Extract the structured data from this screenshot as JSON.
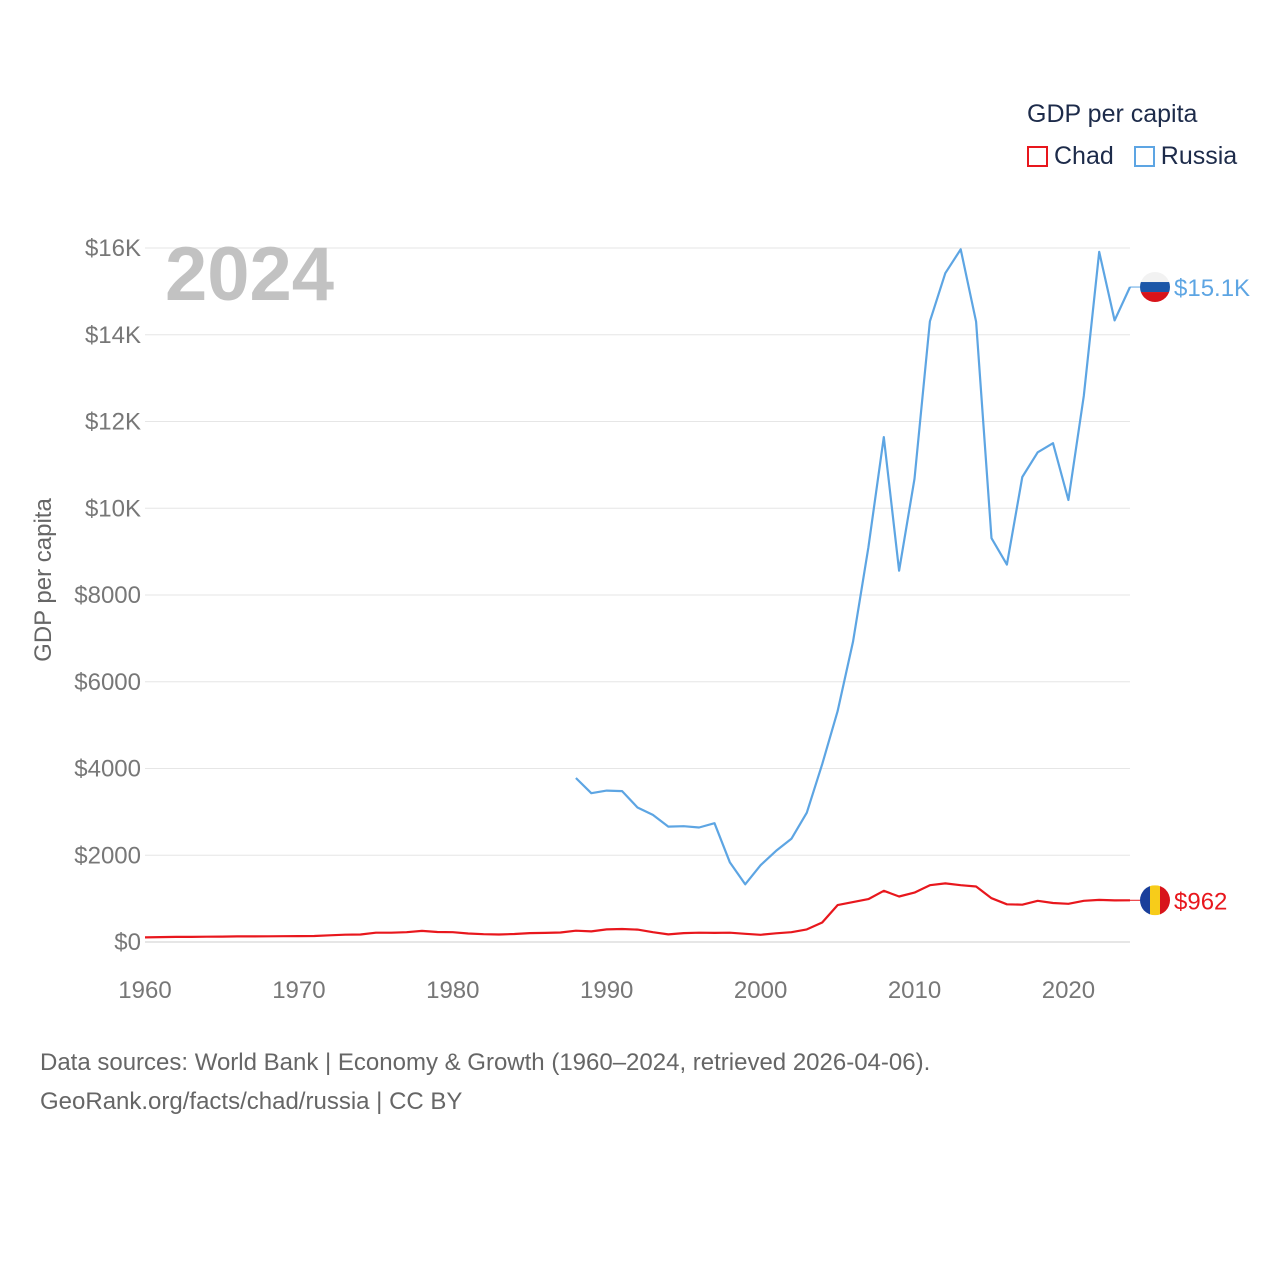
{
  "legend": {
    "title": "GDP per capita"
  },
  "footer": {
    "line1": "Data sources: World Bank | Economy & Growth (1960–2024, retrieved 2026-04-06).",
    "line2": "GeoRank.org/facts/chad/russia | CC BY"
  },
  "chart_data": {
    "type": "line",
    "title": "GDP per capita",
    "year_label": "2024",
    "xlabel": "",
    "ylabel": "GDP per capita",
    "xlim": [
      1960,
      2024
    ],
    "ylim": [
      0,
      16000
    ],
    "x_ticks": [
      1960,
      1970,
      1980,
      1990,
      2000,
      2010,
      2020
    ],
    "y_ticks": [
      {
        "value": 0,
        "label": "$0"
      },
      {
        "value": 2000,
        "label": "$2000"
      },
      {
        "value": 4000,
        "label": "$4000"
      },
      {
        "value": 6000,
        "label": "$6000"
      },
      {
        "value": 8000,
        "label": "$8000"
      },
      {
        "value": 10000,
        "label": "$10K"
      },
      {
        "value": 12000,
        "label": "$12K"
      },
      {
        "value": 14000,
        "label": "$14K"
      },
      {
        "value": 16000,
        "label": "$16K"
      }
    ],
    "grid": true,
    "legend_position": "top-right",
    "series": [
      {
        "name": "Chad",
        "color": "#e8171d",
        "end_label": "$962",
        "flag": "chad-flag",
        "x": [
          1960,
          1961,
          1962,
          1963,
          1964,
          1965,
          1966,
          1967,
          1968,
          1969,
          1970,
          1971,
          1972,
          1973,
          1974,
          1975,
          1976,
          1977,
          1978,
          1979,
          1980,
          1981,
          1982,
          1983,
          1984,
          1985,
          1986,
          1987,
          1988,
          1989,
          1990,
          1991,
          1992,
          1993,
          1994,
          1995,
          1996,
          1997,
          1998,
          1999,
          2000,
          2001,
          2002,
          2003,
          2004,
          2005,
          2006,
          2007,
          2008,
          2009,
          2010,
          2011,
          2012,
          2013,
          2014,
          2015,
          2016,
          2017,
          2018,
          2019,
          2020,
          2021,
          2022,
          2023,
          2024
        ],
        "values": [
          105,
          112,
          117,
          118,
          122,
          125,
          128,
          130,
          131,
          133,
          135,
          138,
          155,
          168,
          172,
          215,
          215,
          226,
          255,
          230,
          225,
          195,
          180,
          172,
          185,
          205,
          210,
          220,
          260,
          245,
          290,
          300,
          285,
          225,
          175,
          205,
          215,
          210,
          215,
          190,
          167,
          200,
          225,
          290,
          450,
          850,
          920,
          990,
          1180,
          1050,
          1140,
          1310,
          1350,
          1310,
          1280,
          1010,
          870,
          860,
          950,
          900,
          880,
          950,
          970,
          960,
          962
        ]
      },
      {
        "name": "Russia",
        "color": "#5da5e3",
        "end_label": "$15.1K",
        "flag": "russia-flag",
        "x": [
          1988,
          1989,
          1990,
          1991,
          1992,
          1993,
          1994,
          1995,
          1996,
          1997,
          1998,
          1999,
          2000,
          2001,
          2002,
          2003,
          2004,
          2005,
          2006,
          2007,
          2008,
          2009,
          2010,
          2011,
          2012,
          2013,
          2014,
          2015,
          2016,
          2017,
          2018,
          2019,
          2020,
          2021,
          2022,
          2023,
          2024
        ],
        "values": [
          3780,
          3430,
          3490,
          3480,
          3100,
          2930,
          2660,
          2670,
          2640,
          2740,
          1840,
          1330,
          1770,
          2100,
          2380,
          2980,
          4100,
          5320,
          6920,
          9100,
          11640,
          8560,
          10680,
          14310,
          15420,
          15970,
          14300,
          9310,
          8700,
          10720,
          11290,
          11500,
          10190,
          12590,
          15910,
          14330,
          15100
        ]
      }
    ]
  }
}
